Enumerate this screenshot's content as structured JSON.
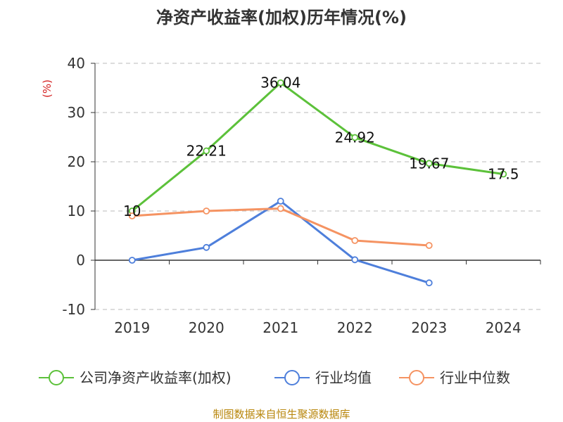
{
  "chart_data": {
    "type": "line",
    "title": "净资产收益率(加权)历年情况(%)",
    "ylabel": "(%)",
    "xlabel": "",
    "ylim": [
      -10,
      40
    ],
    "yticks": [
      -10,
      0,
      10,
      20,
      30,
      40
    ],
    "grid": true,
    "legend_position": "bottom",
    "categories": [
      "2019",
      "2020",
      "2021",
      "2022",
      "2023",
      "2024"
    ],
    "series": [
      {
        "name": "公司净资产收益率(加权)",
        "color": "#5cc13a",
        "values": [
          10,
          22.21,
          36.04,
          24.92,
          19.67,
          17.5
        ],
        "labels": [
          "10",
          "22.21",
          "36.04",
          "24.92",
          "19.67",
          "17.5"
        ]
      },
      {
        "name": "行业均值",
        "color": "#4e7fdb",
        "values": [
          0,
          2.6,
          12,
          0.1,
          -4.6,
          null
        ]
      },
      {
        "name": "行业中位数",
        "color": "#f59362",
        "values": [
          9,
          10,
          10.5,
          4,
          3,
          null
        ]
      }
    ],
    "source": "制图数据来自恒生聚源数据库"
  }
}
